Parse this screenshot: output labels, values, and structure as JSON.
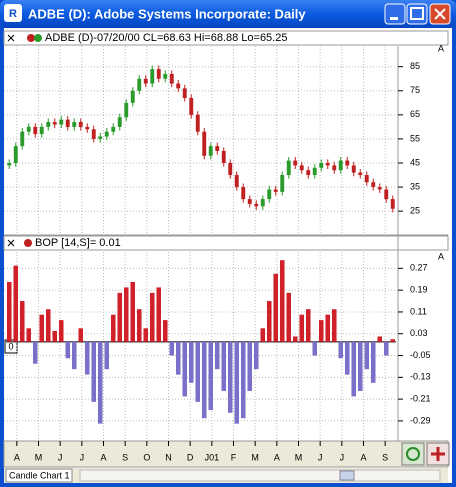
{
  "window_title": "ADBE (D): Adobe Systems Incorporate: Daily",
  "tab_label": "Candle Chart 1",
  "chart_data": [
    {
      "type": "candlestick",
      "title": "ADBE (D)-07/20/00 CL=68.63 Hi=68.88 Lo=65.25",
      "scale_mark": "A",
      "up_color": "#2a9a2a",
      "down_color": "#c02020",
      "grid": true,
      "ylim": [
        15.5,
        93.6
      ],
      "yticks": [
        25,
        35,
        45,
        55,
        65,
        75,
        85
      ],
      "open": [
        44,
        45,
        52,
        58,
        60,
        57,
        60,
        62,
        61,
        63,
        60,
        62,
        60,
        59,
        55,
        56,
        58,
        60,
        64,
        70,
        75,
        80,
        78,
        84,
        80,
        82,
        78,
        76,
        72,
        65,
        58,
        48,
        52,
        50,
        45,
        40,
        35,
        30,
        28,
        27,
        30,
        34,
        33,
        40,
        46,
        44,
        42,
        40,
        43,
        45,
        44,
        42,
        46,
        44,
        41,
        40,
        37,
        35,
        34,
        30
      ],
      "high": [
        46.5,
        53.5,
        59.5,
        61.5,
        61.5,
        61.5,
        63.5,
        63.5,
        64.5,
        64.5,
        63.5,
        63.5,
        61.5,
        60.5,
        57.5,
        59.5,
        61.5,
        65.5,
        71.5,
        76.5,
        81.5,
        81.5,
        85.5,
        85.5,
        83.5,
        83.5,
        79.5,
        77.5,
        73.5,
        66.5,
        59.5,
        53.5,
        53.5,
        51.5,
        46.5,
        41.5,
        36.5,
        31.5,
        29.5,
        31.5,
        35.5,
        35.5,
        41.5,
        47.5,
        47.5,
        45.5,
        43.5,
        44.5,
        46.5,
        46.5,
        45.5,
        47.5,
        47.5,
        45.5,
        42.5,
        41.5,
        38.5,
        36.5,
        35.5,
        31.5
      ],
      "low": [
        42.5,
        43.5,
        50.5,
        56.5,
        55.5,
        55.5,
        58.5,
        59.5,
        59.5,
        58.5,
        58.5,
        58.5,
        57.5,
        53.5,
        53.5,
        54.5,
        56.5,
        58.5,
        62.5,
        68.5,
        73.5,
        76.5,
        76.5,
        78.5,
        78.5,
        76.5,
        74.5,
        70.5,
        63.5,
        56.5,
        46.5,
        46.5,
        48.5,
        43.5,
        38.5,
        33.5,
        28.5,
        26.5,
        25.5,
        25.5,
        28.5,
        31.5,
        31.5,
        38.5,
        42.5,
        40.5,
        38.5,
        38.5,
        41.5,
        42.5,
        40.5,
        40.5,
        42.5,
        39.5,
        38.5,
        35.5,
        33.5,
        32.5,
        28.5,
        24.5
      ],
      "close": [
        45,
        52,
        58,
        60,
        57,
        60,
        62,
        61,
        63,
        60,
        62,
        60,
        59,
        55,
        56,
        58,
        60,
        64,
        70,
        75,
        80,
        78,
        84,
        80,
        82,
        78,
        76,
        72,
        65,
        58,
        48,
        52,
        50,
        45,
        40,
        35,
        30,
        28,
        27,
        30,
        34,
        33,
        40,
        46,
        44,
        42,
        40,
        43,
        45,
        44,
        42,
        46,
        44,
        41,
        40,
        37,
        35,
        34,
        30,
        26
      ]
    },
    {
      "type": "bar",
      "title": "BOP [14,S]= 0.01",
      "scale_mark": "A",
      "zero_label": "0",
      "up_color": "#d0202a",
      "down_color": "#7a6fc9",
      "grid": true,
      "ylim": [
        -0.36,
        0.33
      ],
      "yticks": [
        0.27,
        0.19,
        0.11,
        0.03,
        -0.05,
        -0.13,
        -0.21,
        -0.29
      ],
      "values": [
        0.22,
        0.28,
        0.15,
        0.05,
        -0.08,
        0.1,
        0.12,
        0.04,
        0.08,
        -0.06,
        -0.1,
        0.05,
        -0.12,
        -0.22,
        -0.3,
        -0.1,
        0.1,
        0.18,
        0.2,
        0.22,
        0.12,
        0.05,
        0.18,
        0.2,
        0.08,
        -0.05,
        -0.12,
        -0.2,
        -0.15,
        -0.22,
        -0.28,
        -0.25,
        -0.1,
        -0.18,
        -0.26,
        -0.3,
        -0.28,
        -0.18,
        -0.1,
        0.05,
        0.15,
        0.25,
        0.3,
        0.18,
        0.02,
        0.1,
        0.12,
        -0.05,
        0.08,
        0.1,
        0.12,
        -0.06,
        -0.12,
        -0.2,
        -0.18,
        -0.1,
        -0.15,
        0.02,
        -0.05,
        0.01
      ],
      "x_labels": [
        "A",
        "M",
        "J",
        "J",
        "A",
        "S",
        "O",
        "N",
        "D",
        "J01",
        "F",
        "M",
        "A",
        "M",
        "J",
        "J",
        "A",
        "S"
      ]
    }
  ]
}
